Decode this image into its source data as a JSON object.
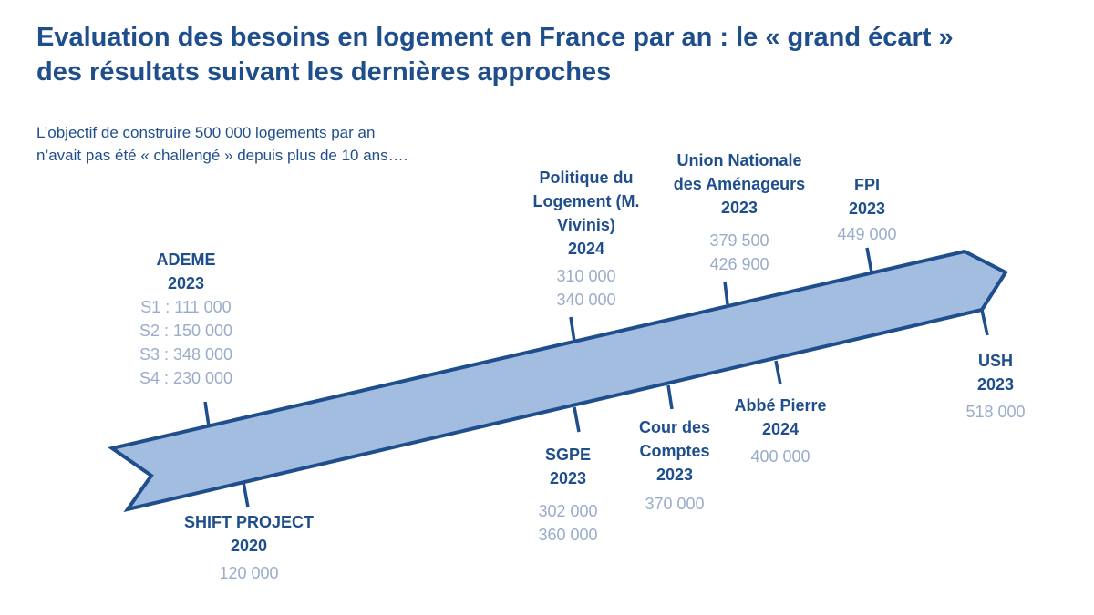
{
  "title": {
    "line1": "Evaluation des besoins en logement en France par an : le « grand écart »",
    "line2": "des résultats suivant les dernières approches"
  },
  "subtitle": {
    "line1": "L’objectif de construire 500 000 logements par an",
    "line2": "n’avait pas été « challengé » depuis plus de 10 ans…."
  },
  "colors": {
    "arrow_fill": "#a3bde0",
    "arrow_stroke": "#1f4e8c",
    "label_name": "#1f4e8c",
    "label_value": "#9aaccb"
  },
  "sources": {
    "ademe": {
      "name": [
        "ADEME",
        "2023"
      ],
      "values": [
        "S1 : 111 000",
        "S2 : 150 000",
        "S3 : 348 000",
        "S4 : 230 000"
      ]
    },
    "shift": {
      "name": [
        "SHIFT PROJECT",
        "2020"
      ],
      "values": [
        "120 000"
      ]
    },
    "politique": {
      "name": [
        "Politique du",
        "Logement (M.",
        "Vivinis)",
        "2024"
      ],
      "values": [
        "310 000",
        "340 000"
      ]
    },
    "sgpe": {
      "name": [
        "SGPE",
        "2023"
      ],
      "values": [
        "302 000",
        "360 000"
      ]
    },
    "unam": {
      "name": [
        "Union Nationale",
        "des Aménageurs",
        "2023"
      ],
      "values": [
        "379 500",
        "426 900"
      ]
    },
    "cour": {
      "name": [
        "Cour des",
        "Comptes",
        "2023"
      ],
      "values": [
        "370 000"
      ]
    },
    "abbe": {
      "name": [
        "Abbé Pierre",
        "2024"
      ],
      "values": [
        "400 000"
      ]
    },
    "fpi": {
      "name": [
        "FPI",
        "2023"
      ],
      "values": [
        "449 000"
      ]
    },
    "ush": {
      "name": [
        "USH",
        "2023"
      ],
      "values": [
        "518 000"
      ]
    }
  }
}
